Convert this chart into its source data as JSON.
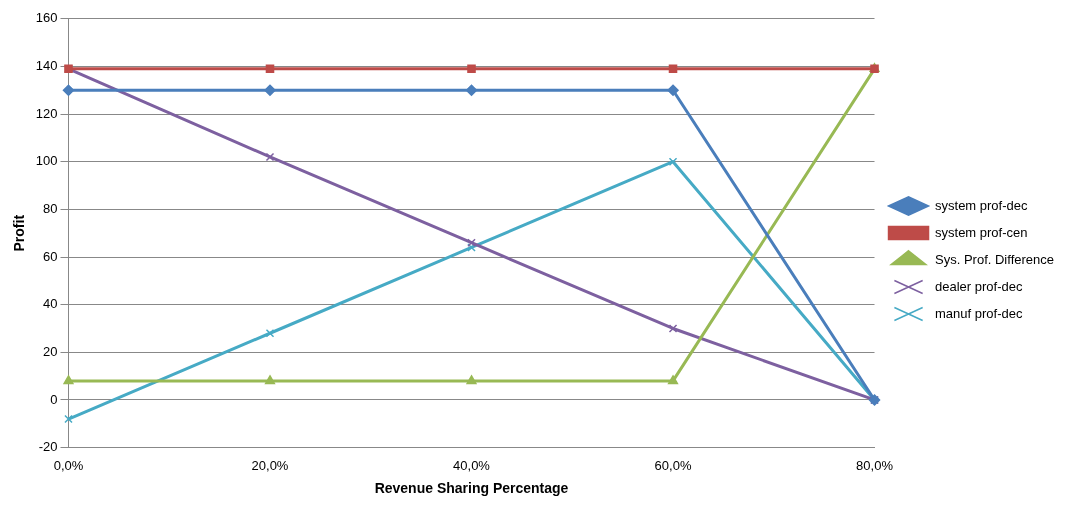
{
  "chart_data": {
    "type": "line",
    "xlabel": "Revenue Sharing Percentage",
    "ylabel": "Profit",
    "categories": [
      "0,0%",
      "20,0%",
      "40,0%",
      "60,0%",
      "80,0%"
    ],
    "ylim": [
      -20,
      160
    ],
    "yticks": [
      -20,
      0,
      20,
      40,
      60,
      80,
      100,
      120,
      140,
      160
    ],
    "grid": "y",
    "legend": "right",
    "line_style": "solid",
    "series": [
      {
        "name": "system prof-dec",
        "color": "#4a7ebb",
        "marker": "diamond",
        "values": [
          130,
          130,
          130,
          130,
          0
        ]
      },
      {
        "name": "system prof-cen",
        "color": "#be4b48",
        "marker": "square",
        "values": [
          139,
          139,
          139,
          139,
          139
        ]
      },
      {
        "name": "Sys. Prof. Difference",
        "color": "#98b954",
        "marker": "triangle",
        "values": [
          8,
          8,
          8,
          8,
          139
        ]
      },
      {
        "name": "dealer prof-dec",
        "color": "#7d60a0",
        "marker": "cross",
        "values": [
          139,
          102,
          66,
          30,
          0
        ]
      },
      {
        "name": "manuf prof-dec",
        "color": "#46aac5",
        "marker": "cross",
        "values": [
          -8,
          28,
          64,
          100,
          0
        ]
      }
    ]
  }
}
